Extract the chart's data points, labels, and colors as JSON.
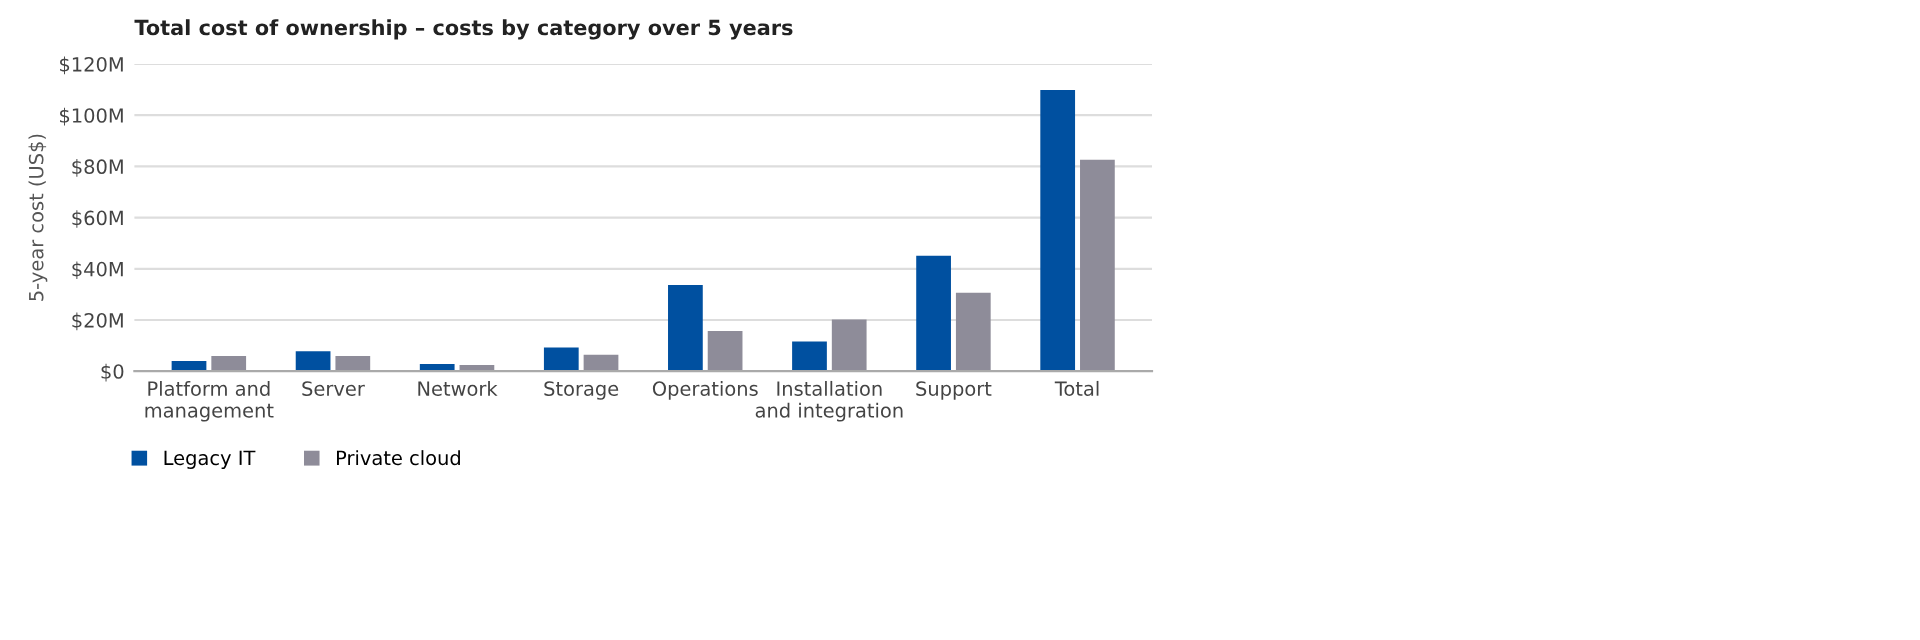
{
  "chart_data": {
    "type": "bar",
    "title": "Total cost of ownership – costs by category over 5 years",
    "ylabel": "5-year cost (US$)",
    "categories": [
      "Platform and\nmanagement",
      "Server",
      "Network",
      "Storage",
      "Operations",
      "Installation\nand integration",
      "Support",
      "Total"
    ],
    "series": [
      {
        "name": "Legacy IT",
        "color": "#0050a0",
        "values": [
          4.0,
          7.8,
          2.8,
          9.3,
          33.7,
          11.6,
          45.1,
          109.8
        ]
      },
      {
        "name": "Private cloud",
        "color": "#8e8c99",
        "values": [
          5.9,
          5.9,
          2.4,
          6.4,
          15.7,
          20.2,
          30.6,
          82.6
        ]
      }
    ],
    "ylim": [
      0,
      120
    ],
    "yticks": [
      {
        "value": 0,
        "label": "$0"
      },
      {
        "value": 20,
        "label": "$20M"
      },
      {
        "value": 40,
        "label": "$40M"
      },
      {
        "value": 60,
        "label": "$60M"
      },
      {
        "value": 80,
        "label": "$80M"
      },
      {
        "value": 100,
        "label": "$100M"
      },
      {
        "value": 120,
        "label": "$120M"
      }
    ],
    "grid": "y",
    "legend": "bottom"
  }
}
